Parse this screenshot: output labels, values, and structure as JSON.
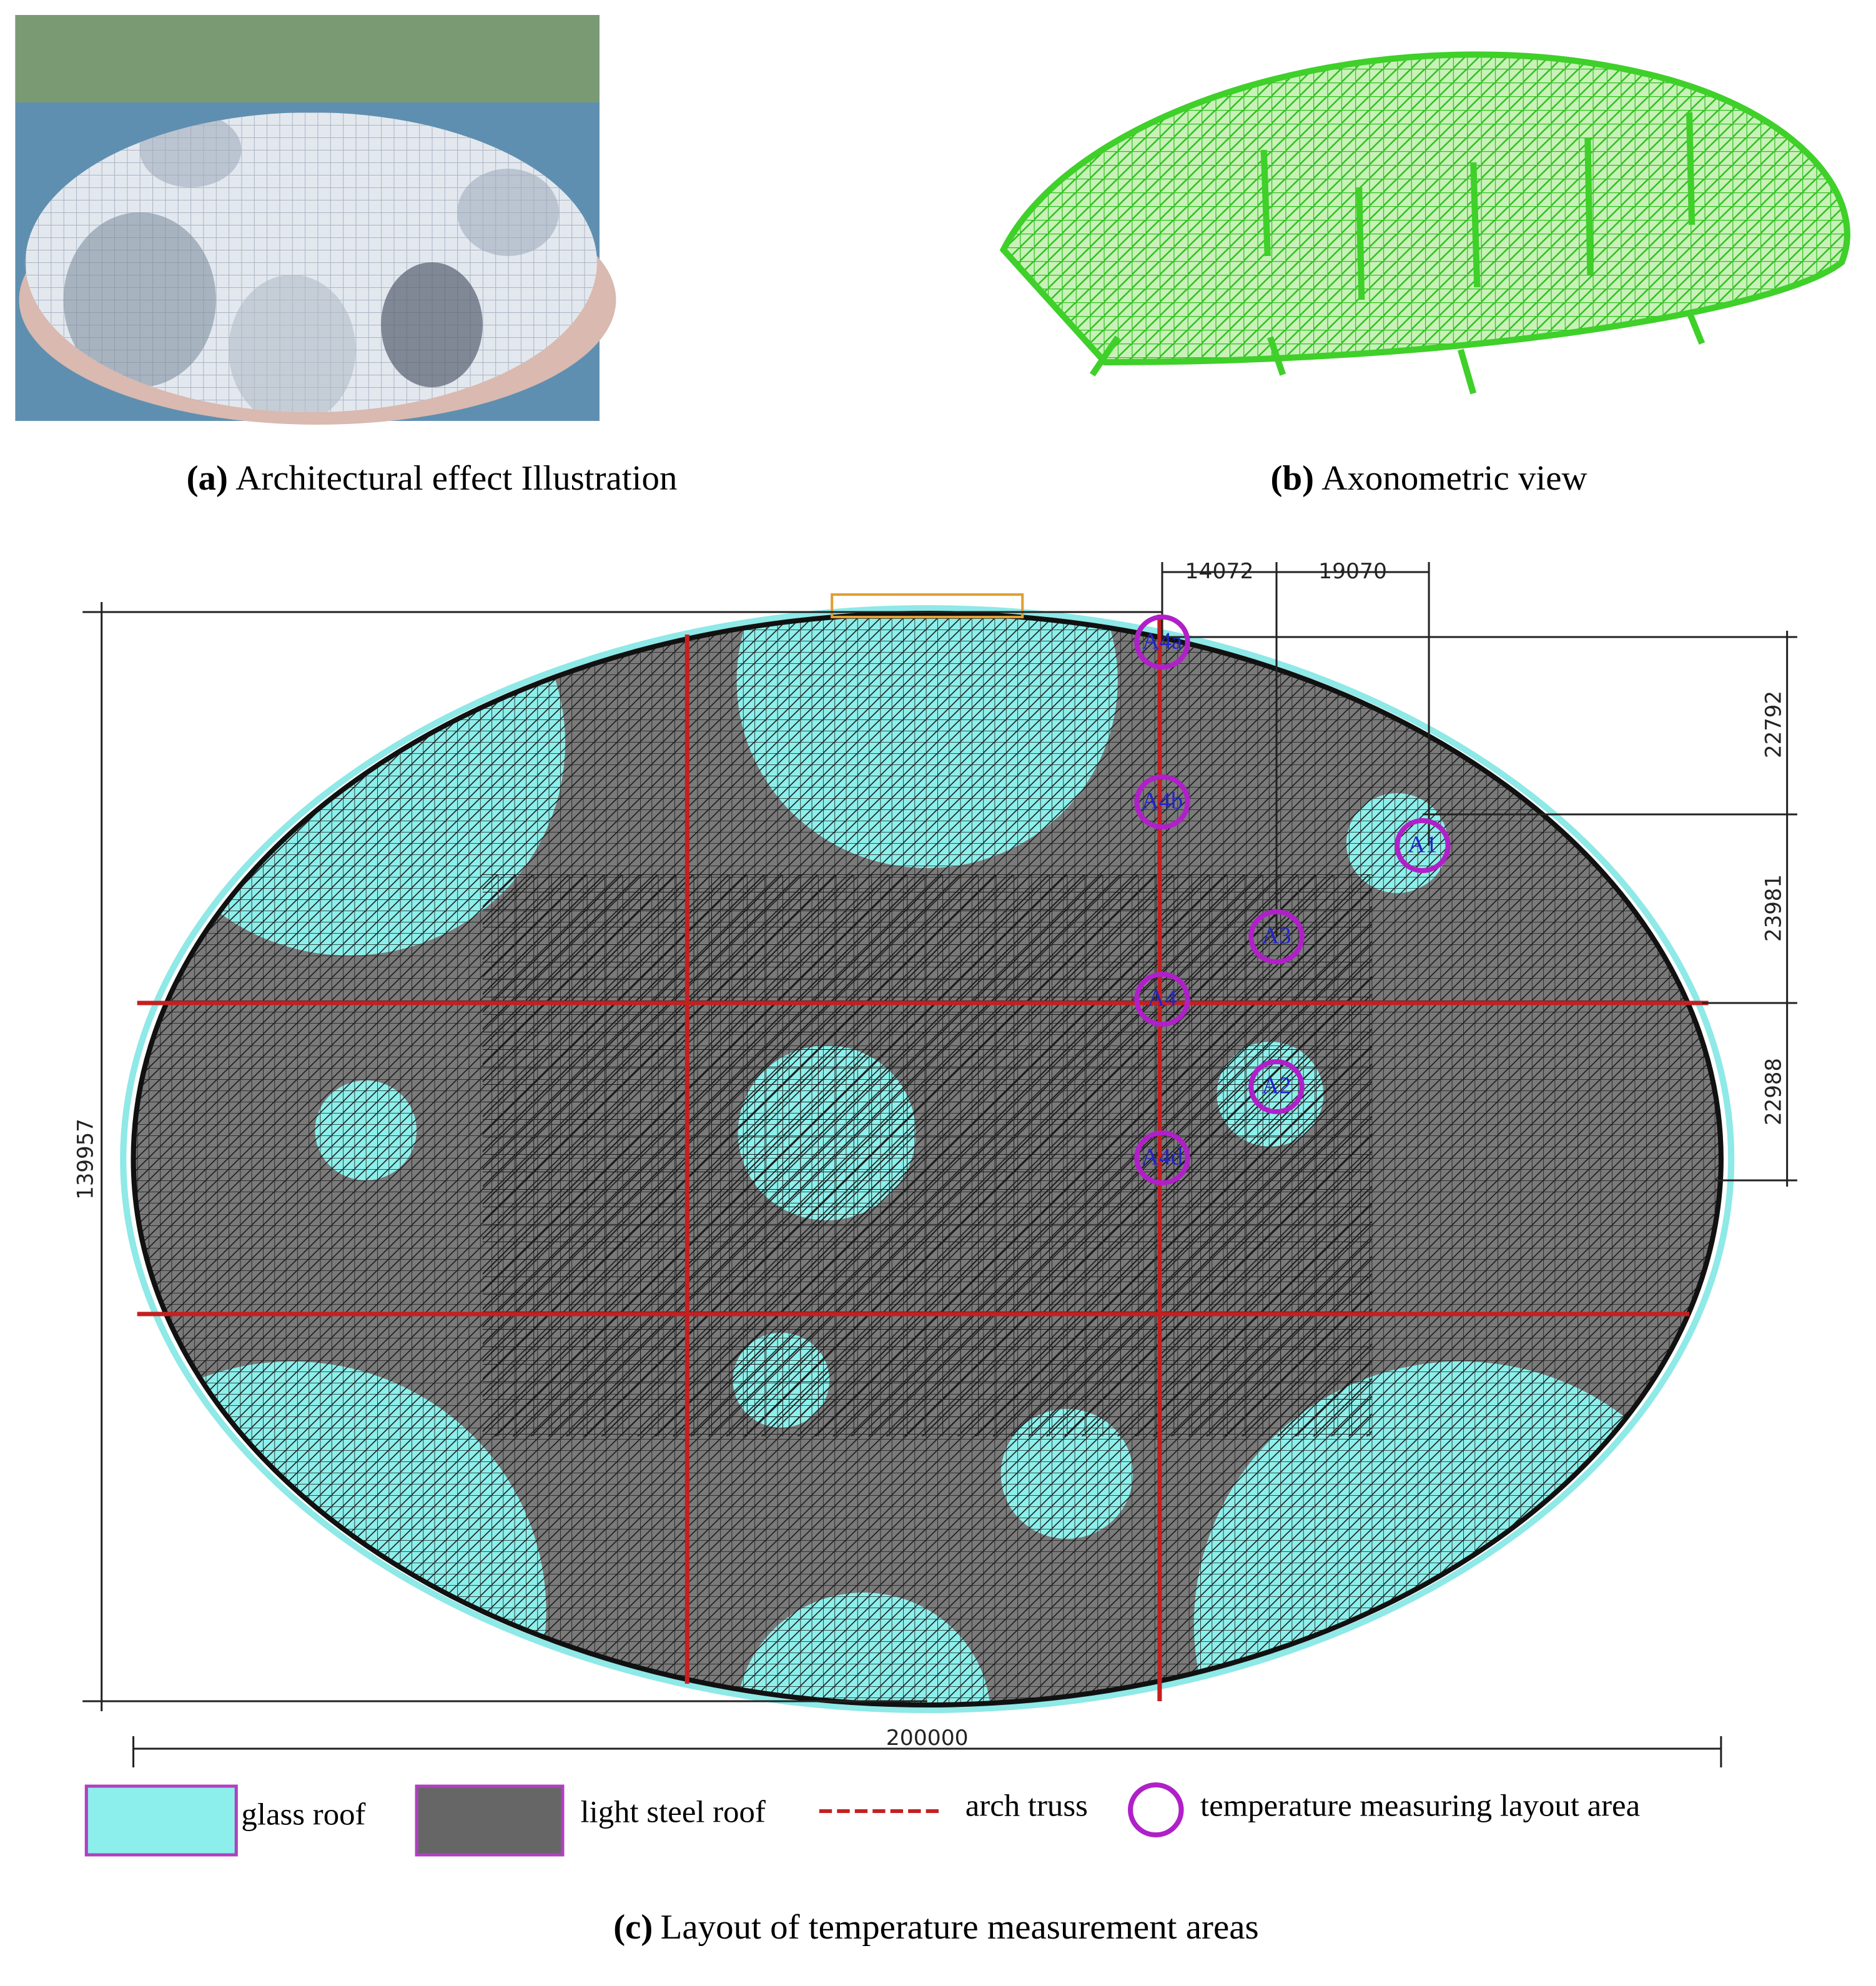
{
  "panels": [
    {
      "label": "(a)",
      "caption": "Architectural effect Illustration"
    },
    {
      "label": "(b)",
      "caption": "Axonometric view"
    },
    {
      "label": "(c)",
      "caption": "Layout of temperature measurement areas"
    }
  ],
  "dimensions": {
    "top": [
      "14072",
      "19070"
    ],
    "right": [
      "22792",
      "23981",
      "22988"
    ],
    "left": "139957",
    "bottom": "200000"
  },
  "points": [
    "A4a",
    "A4b",
    "A1",
    "A3",
    "A4",
    "A2",
    "A4d"
  ],
  "legend": [
    "glass roof",
    "light steel roof",
    "arch truss",
    "temperature measuring layout area"
  ]
}
